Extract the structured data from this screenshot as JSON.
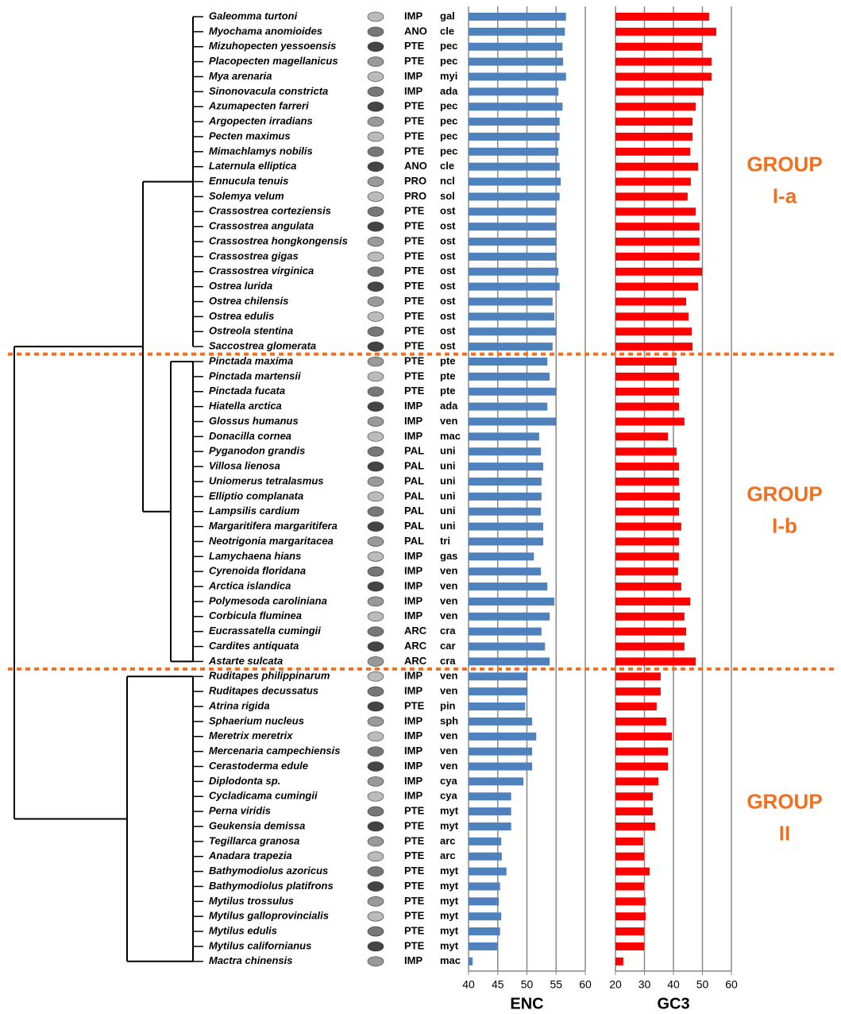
{
  "groups": [
    {
      "label": [
        "GROUP",
        "I-a"
      ],
      "rows": [
        [
          "Galeomma turtoni",
          "IMP",
          "gal"
        ],
        [
          "Myochama anomioides",
          "ANO",
          "cle"
        ],
        [
          "Mizuhopecten yessoensis",
          "PTE",
          "pec"
        ],
        [
          "Placopecten magellanicus",
          "PTE",
          "pec"
        ],
        [
          "Mya arenaria",
          "IMP",
          "myi"
        ],
        [
          "Sinonovacula constricta",
          "IMP",
          "ada"
        ],
        [
          "Azumapecten farreri",
          "PTE",
          "pec"
        ],
        [
          "Argopecten irradians",
          "PTE",
          "pec"
        ],
        [
          "Pecten maximus",
          "PTE",
          "pec"
        ],
        [
          "Mimachlamys nobilis",
          "PTE",
          "pec"
        ],
        [
          "Laternula elliptica",
          "ANO",
          "cle"
        ],
        [
          "Ennucula tenuis",
          "PRO",
          "ncl"
        ],
        [
          "Solemya velum",
          "PRO",
          "sol"
        ],
        [
          "Crassostrea corteziensis",
          "PTE",
          "ost"
        ],
        [
          "Crassostrea angulata",
          "PTE",
          "ost"
        ],
        [
          "Crassostrea hongkongensis",
          "PTE",
          "ost"
        ],
        [
          "Crassostrea gigas",
          "PTE",
          "ost"
        ],
        [
          "Crassostrea virginica",
          "PTE",
          "ost"
        ],
        [
          "Ostrea lurida",
          "PTE",
          "ost"
        ],
        [
          "Ostrea chilensis",
          "PTE",
          "ost"
        ],
        [
          "Ostrea edulis",
          "PTE",
          "ost"
        ],
        [
          "Ostreola stentina",
          "PTE",
          "ost"
        ],
        [
          "Saccostrea glomerata",
          "PTE",
          "ost"
        ]
      ]
    },
    {
      "label": [
        "GROUP",
        "I-b"
      ],
      "rows": [
        [
          "Pinctada maxima",
          "PTE",
          "pte"
        ],
        [
          "Pinctada martensii",
          "PTE",
          "pte"
        ],
        [
          "Pinctada fucata",
          "PTE",
          "pte"
        ],
        [
          "Hiatella arctica",
          "IMP",
          "ada"
        ],
        [
          "Glossus humanus",
          "IMP",
          "ven"
        ],
        [
          "Donacilla cornea",
          "IMP",
          "mac"
        ],
        [
          "Pyganodon grandis",
          "PAL",
          "uni"
        ],
        [
          "Villosa lienosa",
          "PAL",
          "uni"
        ],
        [
          "Uniomerus tetralasmus",
          "PAL",
          "uni"
        ],
        [
          "Elliptio complanata",
          "PAL",
          "uni"
        ],
        [
          "Lampsilis cardium",
          "PAL",
          "uni"
        ],
        [
          "Margaritifera margaritifera",
          "PAL",
          "uni"
        ],
        [
          "Neotrigonia margaritacea",
          "PAL",
          "tri"
        ],
        [
          "Lamychaena hians",
          "IMP",
          "gas"
        ],
        [
          "Cyrenoida floridana",
          "IMP",
          "ven"
        ],
        [
          "Arctica islandica",
          "IMP",
          "ven"
        ],
        [
          "Polymesoda caroliniana",
          "IMP",
          "ven"
        ],
        [
          "Corbicula fluminea",
          "IMP",
          "ven"
        ],
        [
          "Eucrassatella cumingii",
          "ARC",
          "cra"
        ],
        [
          "Cardites antiquata",
          "ARC",
          "car"
        ],
        [
          "Astarte sulcata",
          "ARC",
          "cra"
        ]
      ]
    },
    {
      "label": [
        "GROUP",
        "II"
      ],
      "rows": [
        [
          "Ruditapes philippinarum",
          "IMP",
          "ven"
        ],
        [
          "Ruditapes decussatus",
          "IMP",
          "ven"
        ],
        [
          "Atrina rigida",
          "PTE",
          "pin"
        ],
        [
          "Sphaerium nucleus",
          "IMP",
          "sph"
        ],
        [
          "Meretrix meretrix",
          "IMP",
          "ven"
        ],
        [
          "Mercenaria campechiensis",
          "IMP",
          "ven"
        ],
        [
          "Cerastoderma edule",
          "IMP",
          "ven"
        ],
        [
          "Diplodonta sp.",
          "IMP",
          "cya"
        ],
        [
          "Cycladicama cumingii",
          "IMP",
          "cya"
        ],
        [
          "Perna viridis",
          "PTE",
          "myt"
        ],
        [
          "Geukensia demissa",
          "PTE",
          "myt"
        ],
        [
          "Tegillarca granosa",
          "PTE",
          "arc"
        ],
        [
          "Anadara trapezia",
          "PTE",
          "arc"
        ],
        [
          "Bathymodiolus azoricus",
          "PTE",
          "myt"
        ],
        [
          "Bathymodiolus platifrons",
          "PTE",
          "myt"
        ],
        [
          "Mytilus trossulus",
          "PTE",
          "myt"
        ],
        [
          "Mytilus galloprovincialis",
          "PTE",
          "myt"
        ],
        [
          "Mytilus edulis",
          "PTE",
          "myt"
        ],
        [
          "Mytilus californianus",
          "PTE",
          "myt"
        ],
        [
          "Mactra chinensis",
          "IMP",
          "mac"
        ]
      ]
    }
  ],
  "chart_data": [
    {
      "type": "bar",
      "orientation": "horizontal",
      "xlabel": "ENC",
      "color": "#4f81bd",
      "xlim": [
        40,
        60
      ],
      "xticks": [
        40,
        45,
        50,
        55,
        60
      ],
      "grid": true,
      "values": [
        56.7,
        56.5,
        56.1,
        56.2,
        56.7,
        55.4,
        56.1,
        55.6,
        55.6,
        55.4,
        55.6,
        55.8,
        55.6,
        55.0,
        55.0,
        55.0,
        55.0,
        55.4,
        55.6,
        54.4,
        54.7,
        55.0,
        54.4,
        53.5,
        53.9,
        55.0,
        53.5,
        55.0,
        52.1,
        52.4,
        52.8,
        52.5,
        52.5,
        52.4,
        52.8,
        52.8,
        51.2,
        52.4,
        53.5,
        54.7,
        53.9,
        52.5,
        53.1,
        53.9,
        50.1,
        50.1,
        49.7,
        50.9,
        51.6,
        50.9,
        50.9,
        49.4,
        47.3,
        47.3,
        47.3,
        45.6,
        45.7,
        46.5,
        45.4,
        45.2,
        45.6,
        45.4,
        45.0,
        40.7
      ]
    },
    {
      "type": "bar",
      "orientation": "horizontal",
      "xlabel": "GC3",
      "color": "#ff0000",
      "xlim": [
        20,
        60
      ],
      "xticks": [
        20,
        30,
        40,
        50,
        60
      ],
      "grid": true,
      "values": [
        52.3,
        54.8,
        49.9,
        53.2,
        53.2,
        50.4,
        47.7,
        46.6,
        46.6,
        45.8,
        48.5,
        46.0,
        44.9,
        47.7,
        49.0,
        49.0,
        49.0,
        49.9,
        48.5,
        44.4,
        45.2,
        46.3,
        46.6,
        41.1,
        41.9,
        41.9,
        41.9,
        43.8,
        38.1,
        41.1,
        41.9,
        41.9,
        42.2,
        41.9,
        42.7,
        41.9,
        41.9,
        41.6,
        42.7,
        45.8,
        43.8,
        44.4,
        43.8,
        47.7,
        35.6,
        35.6,
        34.2,
        37.5,
        39.5,
        38.1,
        38.1,
        34.8,
        32.9,
        32.9,
        33.7,
        29.6,
        29.9,
        31.8,
        29.9,
        30.4,
        30.4,
        29.9,
        29.9,
        22.7
      ]
    }
  ]
}
